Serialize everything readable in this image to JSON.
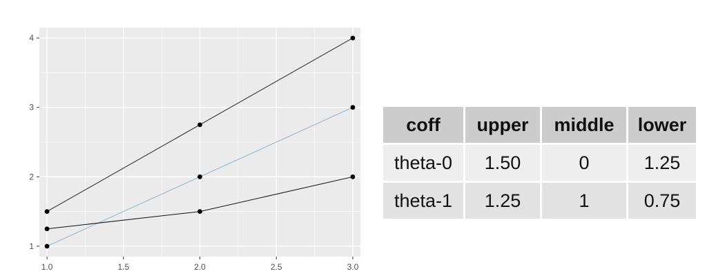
{
  "chart_data": {
    "type": "line",
    "title": "",
    "xlabel": "",
    "ylabel": "",
    "xlim": [
      0.95,
      3.05
    ],
    "ylim": [
      0.85,
      4.15
    ],
    "x_ticks": [
      "1.0",
      "1.5",
      "2.0",
      "2.5",
      "3.0"
    ],
    "y_ticks": [
      "1",
      "2",
      "3",
      "4"
    ],
    "grid": true,
    "legend": "none",
    "series": [
      {
        "x": [
          1,
          2,
          3
        ],
        "y": [
          1.5,
          2.75,
          4
        ],
        "color": "#222222",
        "markers": true
      },
      {
        "x": [
          1,
          2,
          3
        ],
        "y": [
          1,
          2,
          3
        ],
        "color": "#8fb3c9",
        "markers": true
      },
      {
        "x": [
          1,
          2,
          3
        ],
        "y": [
          1.25,
          1.5,
          2
        ],
        "color": "#111111",
        "markers": true
      }
    ]
  },
  "table": {
    "headers": [
      "coff",
      "upper",
      "middle",
      "lower"
    ],
    "rows": [
      [
        "theta-0",
        "1.50",
        "0",
        "1.25"
      ],
      [
        "theta-1",
        "1.25",
        "1",
        "0.75"
      ]
    ]
  },
  "colors": {
    "panel_background": "#ebebeb",
    "grid_line": "#ffffff",
    "table_header_bg": "#cccccc",
    "table_row1_bg": "#eeeeee",
    "table_row2_bg": "#e2e2e2"
  }
}
